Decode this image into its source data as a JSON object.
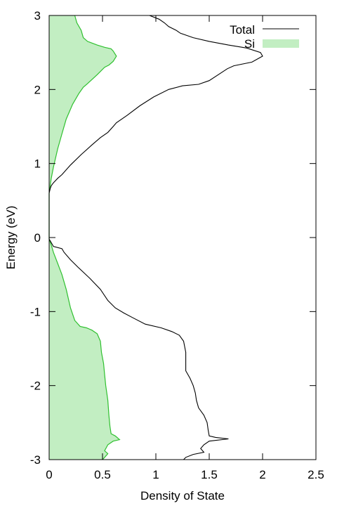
{
  "chart_data": {
    "type": "line",
    "xlabel": "Density of State",
    "ylabel": "Energy (eV)",
    "xlim": [
      0,
      2.5
    ],
    "ylim": [
      -3,
      3
    ],
    "xticks": [
      0,
      0.5,
      1,
      1.5,
      2,
      2.5
    ],
    "xtick_labels": [
      "0",
      "0.5",
      "1",
      "1.5",
      "2",
      "2.5"
    ],
    "yticks": [
      -3,
      -2,
      -1,
      0,
      1,
      2,
      3
    ],
    "ytick_labels": [
      "-3",
      "-2",
      "-1",
      "0",
      "1",
      "2",
      "3"
    ],
    "grid": false,
    "legend_position": "top-right",
    "colors": {
      "total": "#000000",
      "si_line": "#2fc02f",
      "si_fill": "#c2eec2"
    },
    "series": [
      {
        "name": "Total",
        "style": "line",
        "points": [
          [
            0.94,
            3.0
          ],
          [
            1.03,
            2.95
          ],
          [
            1.08,
            2.9
          ],
          [
            1.12,
            2.85
          ],
          [
            1.19,
            2.8
          ],
          [
            1.23,
            2.76
          ],
          [
            1.35,
            2.7
          ],
          [
            1.5,
            2.65
          ],
          [
            1.68,
            2.6
          ],
          [
            1.85,
            2.56
          ],
          [
            1.98,
            2.5
          ],
          [
            2.0,
            2.45
          ],
          [
            1.9,
            2.37
          ],
          [
            1.73,
            2.32
          ],
          [
            1.67,
            2.28
          ],
          [
            1.5,
            2.12
          ],
          [
            1.4,
            2.07
          ],
          [
            1.25,
            2.05
          ],
          [
            1.12,
            2.0
          ],
          [
            0.98,
            1.9
          ],
          [
            0.85,
            1.78
          ],
          [
            0.73,
            1.65
          ],
          [
            0.63,
            1.55
          ],
          [
            0.6,
            1.5
          ],
          [
            0.55,
            1.42
          ],
          [
            0.48,
            1.35
          ],
          [
            0.4,
            1.25
          ],
          [
            0.3,
            1.12
          ],
          [
            0.2,
            0.98
          ],
          [
            0.12,
            0.85
          ],
          [
            0.08,
            0.8
          ],
          [
            0.04,
            0.74
          ],
          [
            0.02,
            0.7
          ],
          [
            0.01,
            0.66
          ],
          [
            0.0,
            0.6
          ],
          [
            0.0,
            -0.02
          ],
          [
            0.04,
            -0.12
          ],
          [
            0.12,
            -0.15
          ],
          [
            0.14,
            -0.2
          ],
          [
            0.2,
            -0.3
          ],
          [
            0.27,
            -0.4
          ],
          [
            0.38,
            -0.55
          ],
          [
            0.48,
            -0.7
          ],
          [
            0.55,
            -0.85
          ],
          [
            0.62,
            -0.95
          ],
          [
            0.7,
            -1.02
          ],
          [
            0.78,
            -1.08
          ],
          [
            0.9,
            -1.17
          ],
          [
            1.05,
            -1.22
          ],
          [
            1.15,
            -1.27
          ],
          [
            1.22,
            -1.32
          ],
          [
            1.26,
            -1.4
          ],
          [
            1.28,
            -1.55
          ],
          [
            1.28,
            -1.8
          ],
          [
            1.32,
            -1.9
          ],
          [
            1.35,
            -2.0
          ],
          [
            1.37,
            -2.1
          ],
          [
            1.38,
            -2.2
          ],
          [
            1.4,
            -2.3
          ],
          [
            1.45,
            -2.4
          ],
          [
            1.48,
            -2.5
          ],
          [
            1.49,
            -2.6
          ],
          [
            1.5,
            -2.68
          ],
          [
            1.56,
            -2.7
          ],
          [
            1.68,
            -2.72
          ],
          [
            1.5,
            -2.75
          ],
          [
            1.45,
            -2.8
          ],
          [
            1.42,
            -2.85
          ],
          [
            1.45,
            -2.9
          ],
          [
            1.35,
            -2.93
          ],
          [
            1.28,
            -2.97
          ],
          [
            1.26,
            -3.0
          ]
        ]
      },
      {
        "name": "Si",
        "style": "filled",
        "points": [
          [
            0.24,
            3.0
          ],
          [
            0.26,
            2.9
          ],
          [
            0.3,
            2.8
          ],
          [
            0.32,
            2.7
          ],
          [
            0.36,
            2.65
          ],
          [
            0.45,
            2.6
          ],
          [
            0.52,
            2.57
          ],
          [
            0.58,
            2.55
          ],
          [
            0.6,
            2.52
          ],
          [
            0.63,
            2.45
          ],
          [
            0.6,
            2.38
          ],
          [
            0.56,
            2.33
          ],
          [
            0.52,
            2.3
          ],
          [
            0.45,
            2.2
          ],
          [
            0.36,
            2.08
          ],
          [
            0.32,
            2.03
          ],
          [
            0.28,
            1.95
          ],
          [
            0.22,
            1.8
          ],
          [
            0.16,
            1.6
          ],
          [
            0.12,
            1.4
          ],
          [
            0.08,
            1.2
          ],
          [
            0.04,
            0.95
          ],
          [
            0.02,
            0.8
          ],
          [
            0.0,
            0.6
          ],
          [
            0.0,
            -0.02
          ],
          [
            0.02,
            -0.1
          ],
          [
            0.04,
            -0.2
          ],
          [
            0.08,
            -0.35
          ],
          [
            0.12,
            -0.5
          ],
          [
            0.16,
            -0.7
          ],
          [
            0.2,
            -0.95
          ],
          [
            0.24,
            -1.12
          ],
          [
            0.29,
            -1.2
          ],
          [
            0.35,
            -1.22
          ],
          [
            0.4,
            -1.25
          ],
          [
            0.45,
            -1.3
          ],
          [
            0.48,
            -1.4
          ],
          [
            0.49,
            -1.55
          ],
          [
            0.51,
            -1.7
          ],
          [
            0.52,
            -1.85
          ],
          [
            0.53,
            -2.0
          ],
          [
            0.54,
            -2.1
          ],
          [
            0.55,
            -2.2
          ],
          [
            0.56,
            -2.4
          ],
          [
            0.57,
            -2.55
          ],
          [
            0.58,
            -2.65
          ],
          [
            0.62,
            -2.68
          ],
          [
            0.66,
            -2.73
          ],
          [
            0.6,
            -2.75
          ],
          [
            0.55,
            -2.8
          ],
          [
            0.52,
            -2.88
          ],
          [
            0.55,
            -2.92
          ],
          [
            0.52,
            -2.97
          ],
          [
            0.5,
            -3.0
          ]
        ]
      }
    ]
  }
}
